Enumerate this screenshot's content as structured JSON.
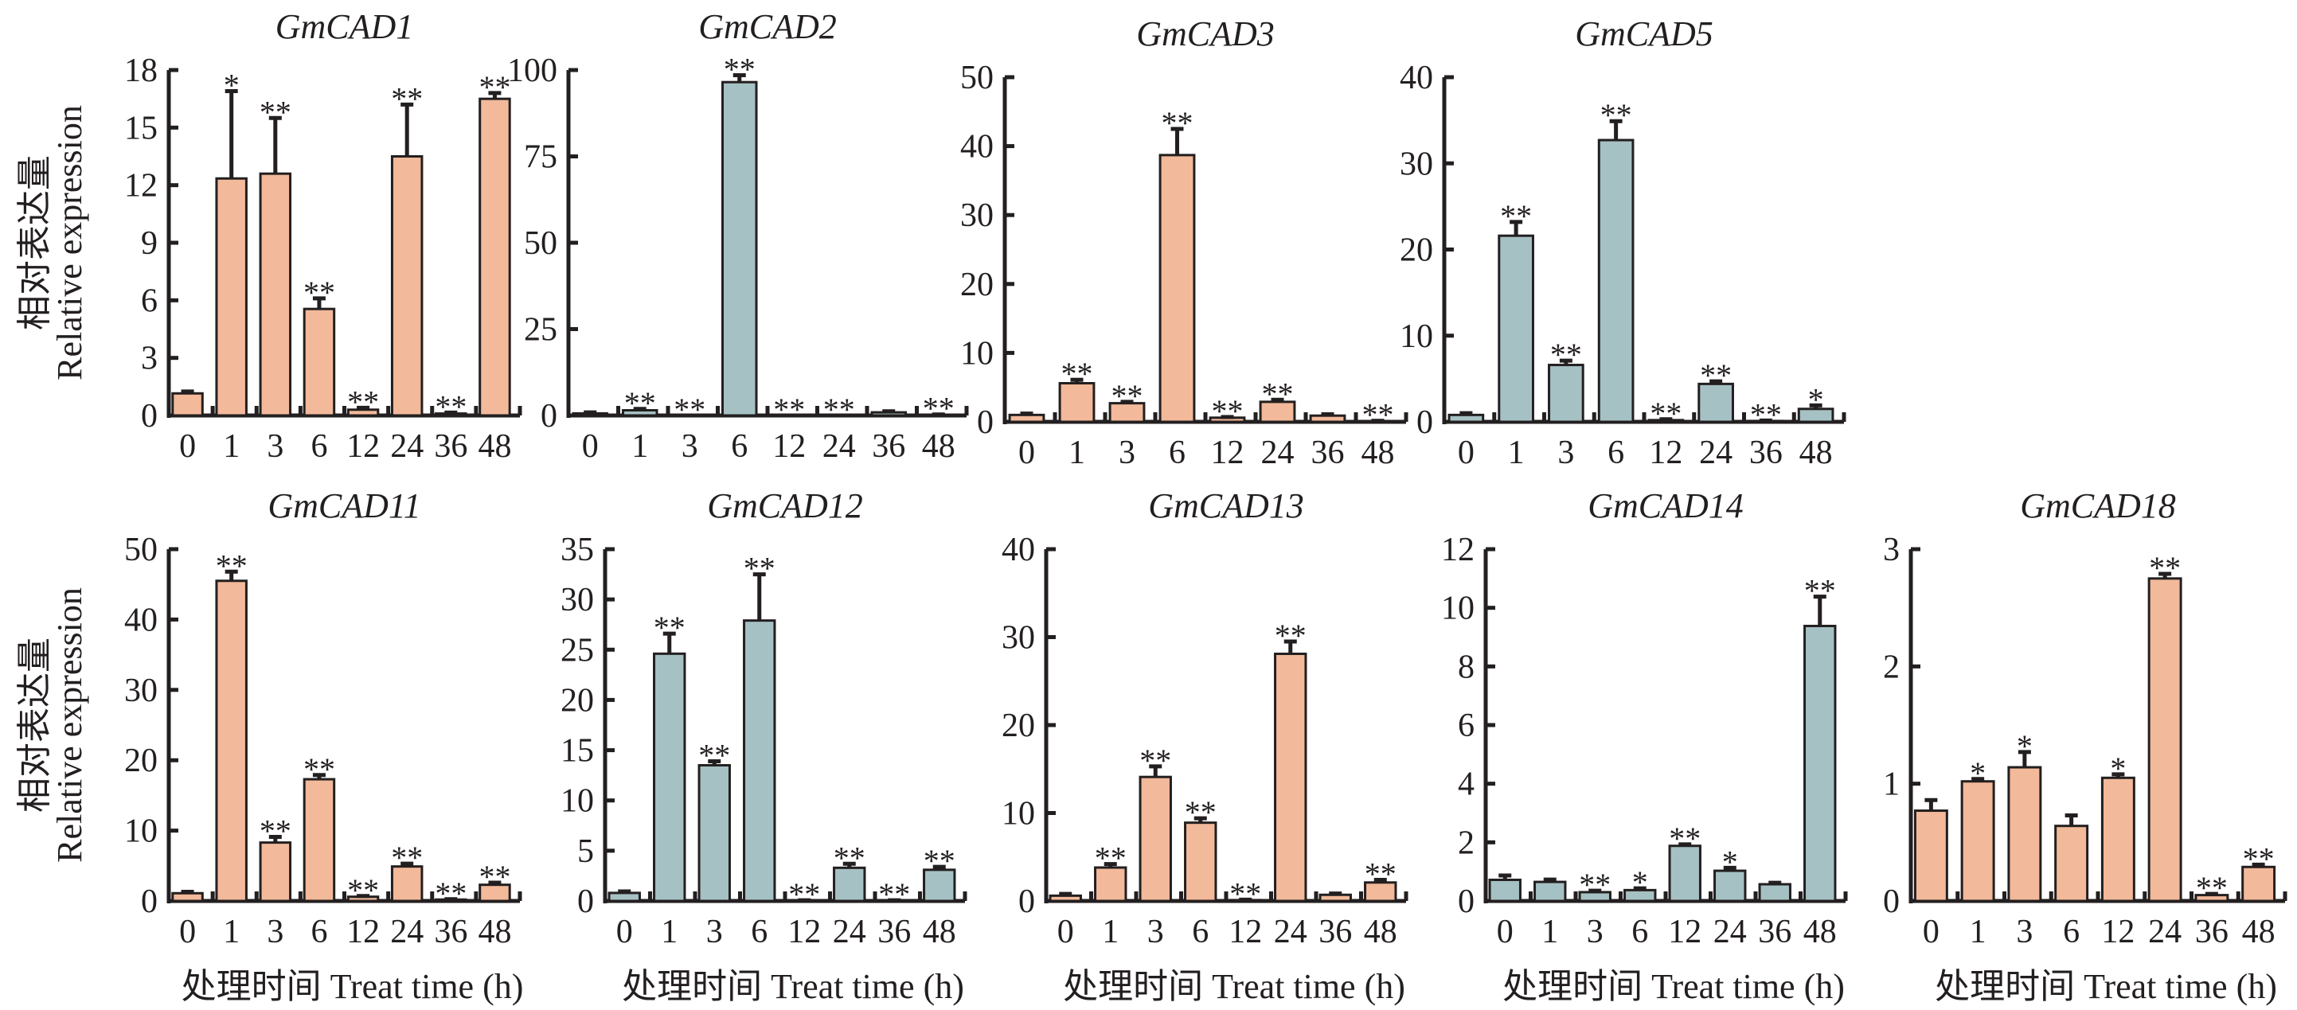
{
  "chart_data": [
    {
      "type": "bar",
      "title": "GmCAD1",
      "categories": [
        "0",
        "1",
        "3",
        "6",
        "12",
        "24",
        "36",
        "48"
      ],
      "values": [
        1.15,
        12.35,
        12.6,
        5.55,
        0.3,
        13.5,
        0.1,
        16.5
      ],
      "errors": [
        0.1,
        4.55,
        2.9,
        0.55,
        0.1,
        2.7,
        0.05,
        0.3
      ],
      "significance": [
        "",
        "*",
        "**",
        "**",
        "**",
        "**",
        "**",
        "**"
      ],
      "color": "#f2b99a",
      "ylim": [
        0,
        18
      ],
      "yticks": [
        0,
        3,
        6,
        9,
        12,
        15,
        18
      ],
      "ylabel_cn": "相对表达量",
      "ylabel": "Relative expression",
      "xlabel": ""
    },
    {
      "type": "bar",
      "title": "GmCAD2",
      "categories": [
        "0",
        "1",
        "3",
        "6",
        "12",
        "24",
        "36",
        "48"
      ],
      "values": [
        0.6,
        1.5,
        0.0,
        96.5,
        0.0,
        0.0,
        0.9,
        0.2
      ],
      "errors": [
        0.3,
        0.4,
        0.0,
        2.0,
        0.0,
        0.0,
        0.3,
        0.1
      ],
      "significance": [
        "",
        "**",
        "**",
        "**",
        "**",
        "**",
        "",
        "**"
      ],
      "color": "#a6c1c3",
      "ylim": [
        0,
        100
      ],
      "yticks": [
        0,
        25,
        50,
        75,
        100
      ],
      "xlabel": ""
    },
    {
      "type": "bar",
      "title": "GmCAD3",
      "categories": [
        "0",
        "1",
        "3",
        "6",
        "12",
        "24",
        "36",
        "48"
      ],
      "values": [
        1.0,
        5.6,
        2.7,
        38.7,
        0.6,
        2.9,
        0.9,
        0.1
      ],
      "errors": [
        0.2,
        0.5,
        0.2,
        3.8,
        0.1,
        0.3,
        0.2,
        0.05
      ],
      "significance": [
        "",
        "**",
        "**",
        "**",
        "**",
        "**",
        "",
        "**"
      ],
      "color": "#f2b99a",
      "ylim": [
        0,
        50
      ],
      "yticks": [
        0,
        10,
        20,
        30,
        40,
        50
      ],
      "xlabel": ""
    },
    {
      "type": "bar",
      "title": "GmCAD5",
      "categories": [
        "0",
        "1",
        "3",
        "6",
        "12",
        "24",
        "36",
        "48"
      ],
      "values": [
        0.8,
        21.6,
        6.6,
        32.7,
        0.2,
        4.4,
        0.1,
        1.5
      ],
      "errors": [
        0.2,
        1.6,
        0.5,
        2.2,
        0.1,
        0.3,
        0.05,
        0.4
      ],
      "significance": [
        "",
        "**",
        "**",
        "**",
        "**",
        "**",
        "**",
        "*"
      ],
      "color": "#a6c1c3",
      "ylim": [
        0,
        40
      ],
      "yticks": [
        0,
        10,
        20,
        30,
        40
      ],
      "xlabel": ""
    },
    {
      "type": "bar",
      "title": "GmCAD11",
      "categories": [
        "0",
        "1",
        "3",
        "6",
        "12",
        "24",
        "36",
        "48"
      ],
      "values": [
        1.1,
        45.5,
        8.3,
        17.3,
        0.6,
        4.9,
        0.2,
        2.3
      ],
      "errors": [
        0.2,
        1.3,
        0.8,
        0.6,
        0.1,
        0.4,
        0.05,
        0.3
      ],
      "significance": [
        "",
        "**",
        "**",
        "**",
        "**",
        "**",
        "**",
        "**"
      ],
      "color": "#f2b99a",
      "ylim": [
        0,
        50
      ],
      "yticks": [
        0,
        10,
        20,
        30,
        40,
        50
      ],
      "ylabel_cn": "相对表达量",
      "ylabel": "Relative expression",
      "xlabel": "处理时间 Treat time (h)"
    },
    {
      "type": "bar",
      "title": "GmCAD12",
      "categories": [
        "0",
        "1",
        "3",
        "6",
        "12",
        "24",
        "36",
        "48"
      ],
      "values": [
        0.8,
        24.6,
        13.5,
        27.9,
        0.05,
        3.3,
        0.05,
        3.1
      ],
      "errors": [
        0.15,
        2.0,
        0.4,
        4.6,
        0.02,
        0.4,
        0.02,
        0.3
      ],
      "significance": [
        "",
        "**",
        "**",
        "**",
        "**",
        "**",
        "**",
        "**"
      ],
      "color": "#a6c1c3",
      "ylim": [
        0,
        35
      ],
      "yticks": [
        0,
        5,
        10,
        15,
        20,
        25,
        30,
        35
      ],
      "xlabel": "处理时间 Treat time (h)"
    },
    {
      "type": "bar",
      "title": "GmCAD13",
      "categories": [
        "0",
        "1",
        "3",
        "6",
        "12",
        "24",
        "36",
        "48"
      ],
      "values": [
        0.6,
        3.8,
        14.1,
        8.9,
        0.1,
        28.1,
        0.7,
        2.1
      ],
      "errors": [
        0.2,
        0.4,
        1.2,
        0.5,
        0.05,
        1.4,
        0.15,
        0.3
      ],
      "significance": [
        "",
        "**",
        "**",
        "**",
        "**",
        "**",
        "",
        "**"
      ],
      "color": "#f2b99a",
      "ylim": [
        0,
        40
      ],
      "yticks": [
        0,
        10,
        20,
        30,
        40
      ],
      "xlabel": "处理时间 Treat time (h)"
    },
    {
      "type": "bar",
      "title": "GmCAD14",
      "categories": [
        "0",
        "1",
        "3",
        "6",
        "12",
        "24",
        "36",
        "48"
      ],
      "values": [
        0.72,
        0.65,
        0.3,
        0.37,
        1.88,
        1.03,
        0.57,
        9.38
      ],
      "errors": [
        0.15,
        0.08,
        0.05,
        0.06,
        0.05,
        0.1,
        0.05,
        1.0
      ],
      "significance": [
        "",
        "",
        "**",
        "*",
        "**",
        "*",
        "",
        "**"
      ],
      "color": "#a6c1c3",
      "ylim": [
        0,
        12
      ],
      "yticks": [
        0,
        2,
        4,
        6,
        8,
        10,
        12
      ],
      "xlabel": "处理时间 Treat time (h)"
    },
    {
      "type": "bar",
      "title": "GmCAD18",
      "categories": [
        "0",
        "1",
        "3",
        "6",
        "12",
        "24",
        "36",
        "48"
      ],
      "values": [
        0.77,
        1.02,
        1.14,
        0.64,
        1.05,
        2.75,
        0.05,
        0.29
      ],
      "errors": [
        0.09,
        0.02,
        0.13,
        0.09,
        0.03,
        0.04,
        0.01,
        0.02
      ],
      "significance": [
        "",
        "*",
        "*",
        "",
        "*",
        "**",
        "**",
        "**"
      ],
      "color": "#f2b99a",
      "ylim": [
        0,
        3
      ],
      "yticks": [
        0,
        1,
        2,
        3
      ],
      "xlabel": "处理时间 Treat time (h)"
    }
  ],
  "colors": {
    "peach": "#f2b99a",
    "teal": "#a6c1c3",
    "ink": "#231f20"
  }
}
